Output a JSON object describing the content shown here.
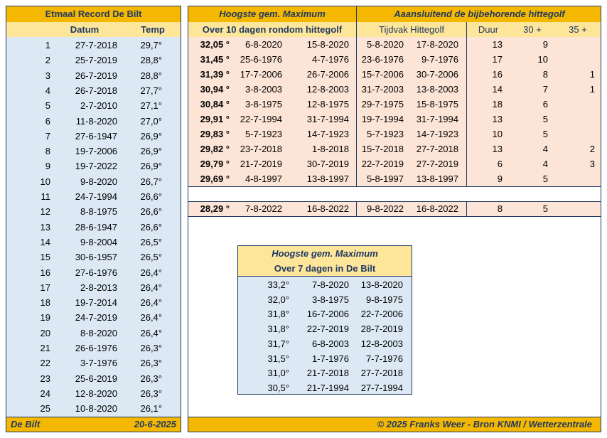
{
  "left_panel": {
    "title": "Etmaal Record De Bilt",
    "col_date": "Datum",
    "col_temp": "Temp",
    "rows": [
      {
        "rank": "1",
        "date": "27-7-2018",
        "temp": "29,7°"
      },
      {
        "rank": "2",
        "date": "25-7-2019",
        "temp": "28,8°"
      },
      {
        "rank": "3",
        "date": "26-7-2019",
        "temp": "28,8°"
      },
      {
        "rank": "4",
        "date": "26-7-2018",
        "temp": "27,7°"
      },
      {
        "rank": "5",
        "date": "2-7-2010",
        "temp": "27,1°"
      },
      {
        "rank": "6",
        "date": "11-8-2020",
        "temp": "27,0°"
      },
      {
        "rank": "7",
        "date": "27-6-1947",
        "temp": "26,9°"
      },
      {
        "rank": "8",
        "date": "19-7-2006",
        "temp": "26,9°"
      },
      {
        "rank": "9",
        "date": "19-7-2022",
        "temp": "26,9°"
      },
      {
        "rank": "10",
        "date": "9-8-2020",
        "temp": "26,7°"
      },
      {
        "rank": "11",
        "date": "24-7-1994",
        "temp": "26,6°"
      },
      {
        "rank": "12",
        "date": "8-8-1975",
        "temp": "26,6°"
      },
      {
        "rank": "13",
        "date": "28-6-1947",
        "temp": "26,6°"
      },
      {
        "rank": "14",
        "date": "9-8-2004",
        "temp": "26,5°"
      },
      {
        "rank": "15",
        "date": "30-6-1957",
        "temp": "26,5°"
      },
      {
        "rank": "16",
        "date": "27-6-1976",
        "temp": "26,4°"
      },
      {
        "rank": "17",
        "date": "2-8-2013",
        "temp": "26,4°"
      },
      {
        "rank": "18",
        "date": "19-7-2014",
        "temp": "26,4°"
      },
      {
        "rank": "19",
        "date": "24-7-2019",
        "temp": "26,4°"
      },
      {
        "rank": "20",
        "date": "8-8-2020",
        "temp": "26,4°"
      },
      {
        "rank": "21",
        "date": "26-6-1976",
        "temp": "26,3°"
      },
      {
        "rank": "22",
        "date": "3-7-1976",
        "temp": "26,3°"
      },
      {
        "rank": "23",
        "date": "25-6-2019",
        "temp": "26,3°"
      },
      {
        "rank": "24",
        "date": "12-8-2020",
        "temp": "26,3°"
      },
      {
        "rank": "25",
        "date": "10-8-2020",
        "temp": "26,1°"
      }
    ],
    "footer_place": "De Bilt",
    "footer_date": "20-6-2025"
  },
  "right_panel": {
    "title_left": "Hoogste gem. Maximum",
    "title_right": "Aaansluitend de bijbehorende hittegolf",
    "sub_left": "Over 10 dagen rondom hittegolf",
    "sub_period": "Tijdvak Hittegolf",
    "sub_duur": "Duur",
    "sub_30": "30 +",
    "sub_35": "35 +",
    "rows": [
      {
        "avg": "32,05 °",
        "from": "6-8-2020",
        "to": "15-8-2020",
        "hw_from": "5-8-2020",
        "hw_to": "17-8-2020",
        "duur": "13",
        "c30": "9",
        "c35": ""
      },
      {
        "avg": "31,45 °",
        "from": "25-6-1976",
        "to": "4-7-1976",
        "hw_from": "23-6-1976",
        "hw_to": "9-7-1976",
        "duur": "17",
        "c30": "10",
        "c35": ""
      },
      {
        "avg": "31,39 °",
        "from": "17-7-2006",
        "to": "26-7-2006",
        "hw_from": "15-7-2006",
        "hw_to": "30-7-2006",
        "duur": "16",
        "c30": "8",
        "c35": "1"
      },
      {
        "avg": "30,94 °",
        "from": "3-8-2003",
        "to": "12-8-2003",
        "hw_from": "31-7-2003",
        "hw_to": "13-8-2003",
        "duur": "14",
        "c30": "7",
        "c35": "1"
      },
      {
        "avg": "30,84 °",
        "from": "3-8-1975",
        "to": "12-8-1975",
        "hw_from": "29-7-1975",
        "hw_to": "15-8-1975",
        "duur": "18",
        "c30": "6",
        "c35": ""
      },
      {
        "avg": "29,91 °",
        "from": "22-7-1994",
        "to": "31-7-1994",
        "hw_from": "19-7-1994",
        "hw_to": "31-7-1994",
        "duur": "13",
        "c30": "5",
        "c35": ""
      },
      {
        "avg": "29,83 °",
        "from": "5-7-1923",
        "to": "14-7-1923",
        "hw_from": "5-7-1923",
        "hw_to": "14-7-1923",
        "duur": "10",
        "c30": "5",
        "c35": ""
      },
      {
        "avg": "29,82 °",
        "from": "23-7-2018",
        "to": "1-8-2018",
        "hw_from": "15-7-2018",
        "hw_to": "27-7-2018",
        "duur": "13",
        "c30": "4",
        "c35": "2"
      },
      {
        "avg": "29,79 °",
        "from": "21-7-2019",
        "to": "30-7-2019",
        "hw_from": "22-7-2019",
        "hw_to": "27-7-2019",
        "duur": "6",
        "c30": "4",
        "c35": "3"
      },
      {
        "avg": "29,69 °",
        "from": "4-8-1997",
        "to": "13-8-1997",
        "hw_from": "5-8-1997",
        "hw_to": "13-8-1997",
        "duur": "9",
        "c30": "5",
        "c35": ""
      }
    ],
    "extra_row": {
      "avg": "28,29 °",
      "from": "7-8-2022",
      "to": "16-8-2022",
      "hw_from": "9-8-2022",
      "hw_to": "16-8-2022",
      "duur": "8",
      "c30": "5",
      "c35": ""
    },
    "footer": "© 2025 Franks Weer - Bron KNMI / Wetterzentrale"
  },
  "seven_day": {
    "title": "Hoogste gem. Maximum",
    "subtitle": "Over 7 dagen in De Bilt",
    "rows": [
      {
        "avg": "33,2°",
        "from": "7-8-2020",
        "to": "13-8-2020"
      },
      {
        "avg": "32,0°",
        "from": "3-8-1975",
        "to": "9-8-1975"
      },
      {
        "avg": "31,8°",
        "from": "16-7-2006",
        "to": "22-7-2006"
      },
      {
        "avg": "31,8°",
        "from": "22-7-2019",
        "to": "28-7-2019"
      },
      {
        "avg": "31,7°",
        "from": "6-8-2003",
        "to": "12-8-2003"
      },
      {
        "avg": "31,5°",
        "from": "1-7-1976",
        "to": "7-7-1976"
      },
      {
        "avg": "31,0°",
        "from": "21-7-2018",
        "to": "27-7-2018"
      },
      {
        "avg": "30,5°",
        "from": "21-7-1994",
        "to": "27-7-1994"
      }
    ]
  },
  "colors": {
    "header_orange": "#f5b800",
    "header_yellow": "#fde69a",
    "cell_blue": "#dce9f5",
    "cell_pink": "#fce4d6",
    "border_navy": "#1f3864"
  }
}
